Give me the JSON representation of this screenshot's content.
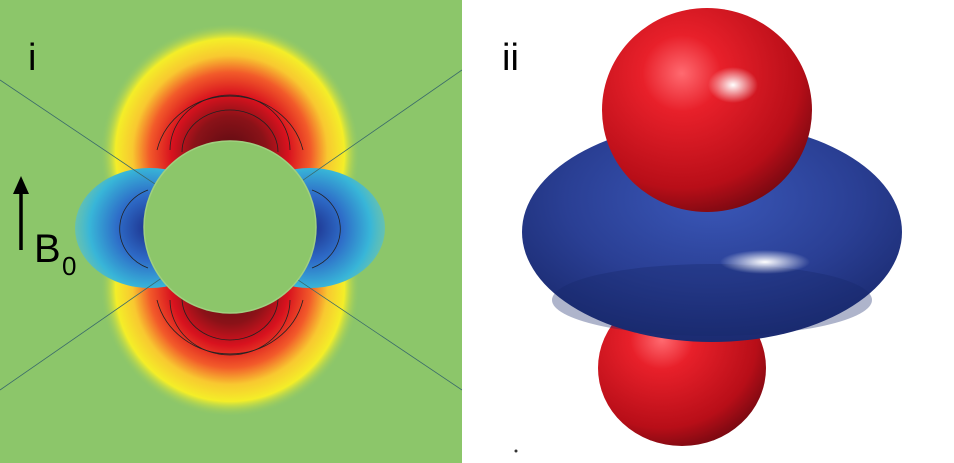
{
  "panels": {
    "left": {
      "label": "i"
    },
    "right": {
      "label": "ii"
    }
  },
  "field": {
    "symbol": "B",
    "subscript": "0",
    "arrow": "up-arrow-icon"
  },
  "colors": {
    "background_field": "#8cc66a",
    "positive_lobe": "#d8121e",
    "negative_lobe": "#2a3f94",
    "ring_yellow": "#f4ee28",
    "ring_cyan": "#38b6d8"
  }
}
